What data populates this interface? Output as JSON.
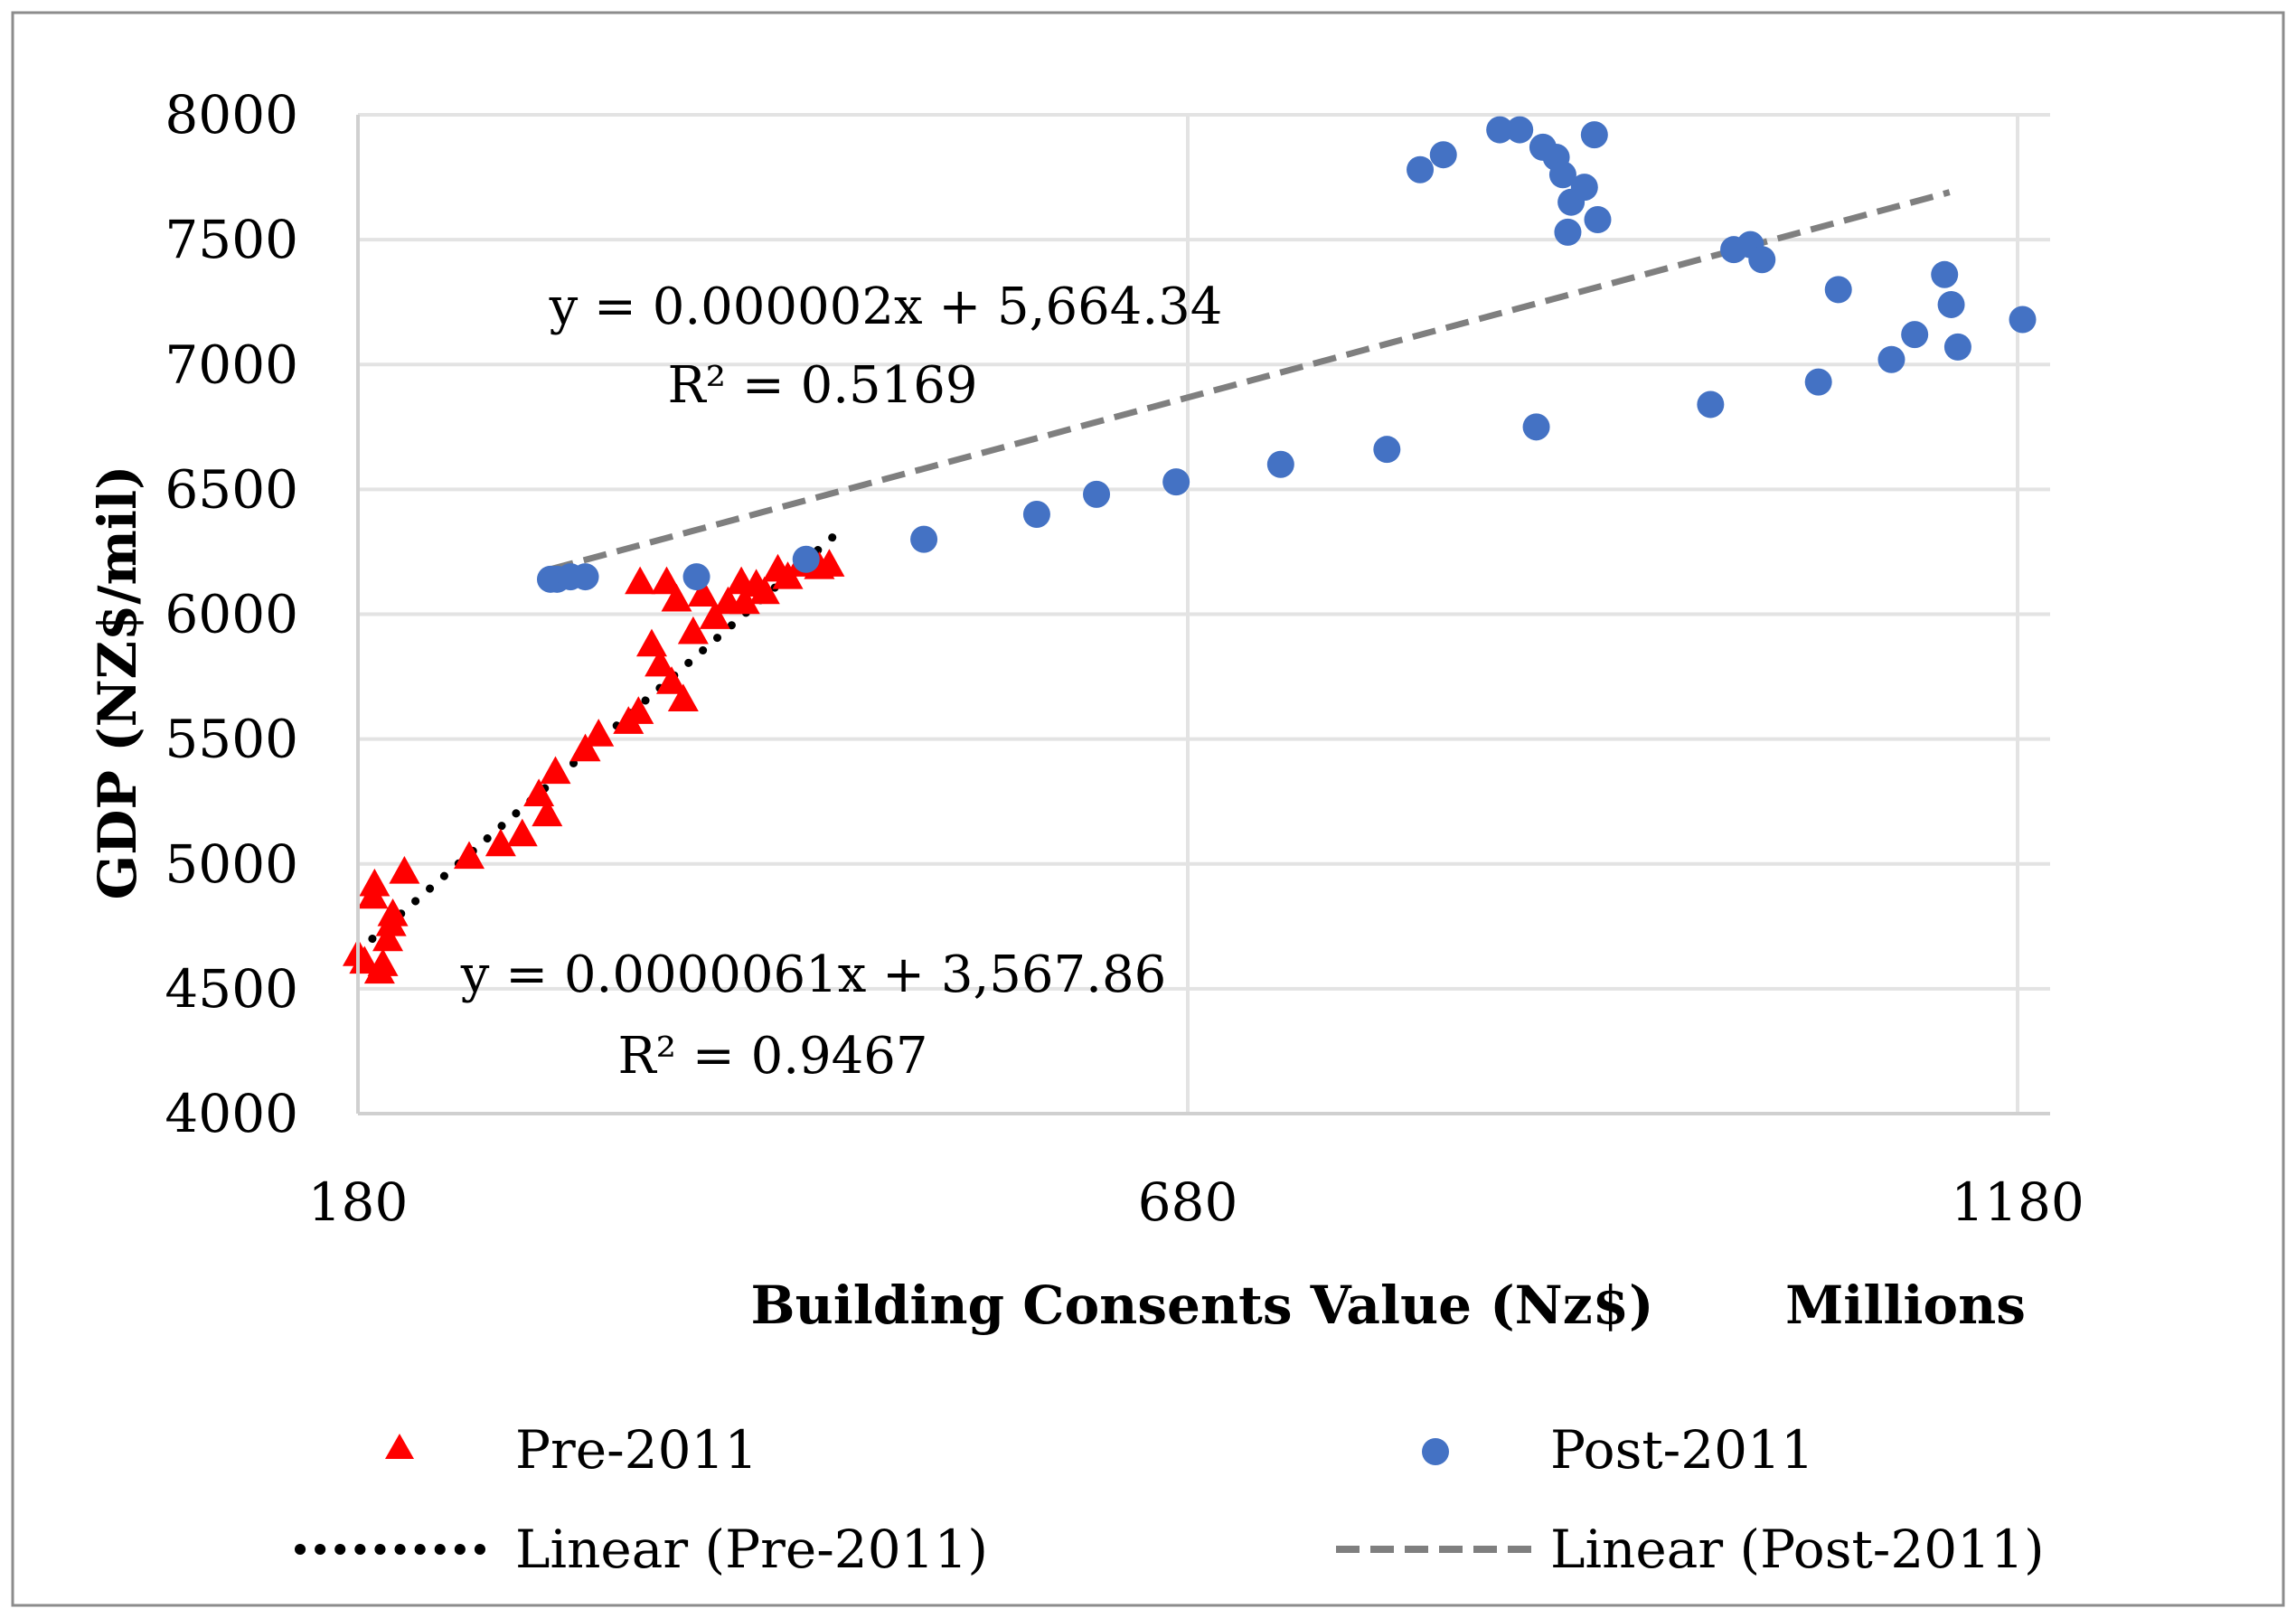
{
  "chart_data": {
    "type": "scatter",
    "title": "",
    "xlabel": "Building Consents Value (Nz$)",
    "x_unit_label": "Millions",
    "ylabel": "GDP (NZ$/mil)",
    "xlim": [
      180,
      1200
    ],
    "ylim": [
      4000,
      8000
    ],
    "xticks": [
      180,
      680,
      1180
    ],
    "yticks": [
      4000,
      4500,
      5000,
      5500,
      6000,
      6500,
      7000,
      7500,
      8000
    ],
    "grid": true,
    "legend_position": "bottom",
    "series": [
      {
        "name": "Pre-2011",
        "marker": "triangle",
        "color": "#ff0000",
        "points": [
          [
            180,
            4640
          ],
          [
            184,
            4610
          ],
          [
            189,
            4870
          ],
          [
            190,
            4920
          ],
          [
            193,
            4570
          ],
          [
            195,
            4600
          ],
          [
            198,
            4700
          ],
          [
            200,
            4760
          ],
          [
            201,
            4800
          ],
          [
            208,
            4970
          ],
          [
            247,
            5030
          ],
          [
            266,
            5080
          ],
          [
            279,
            5120
          ],
          [
            289,
            5280
          ],
          [
            294,
            5200
          ],
          [
            299,
            5370
          ],
          [
            317,
            5460
          ],
          [
            325,
            5520
          ],
          [
            343,
            5570
          ],
          [
            349,
            5610
          ],
          [
            350,
            6130
          ],
          [
            357,
            5880
          ],
          [
            362,
            5800
          ],
          [
            366,
            6130
          ],
          [
            369,
            5730
          ],
          [
            372,
            6060
          ],
          [
            376,
            5660
          ],
          [
            382,
            5930
          ],
          [
            388,
            6080
          ],
          [
            395,
            5990
          ],
          [
            403,
            6050
          ],
          [
            411,
            6130
          ],
          [
            413,
            6050
          ],
          [
            420,
            6120
          ],
          [
            425,
            6090
          ],
          [
            433,
            6180
          ],
          [
            439,
            6150
          ],
          [
            447,
            6200
          ],
          [
            458,
            6190
          ],
          [
            464,
            6200
          ]
        ]
      },
      {
        "name": "Post-2011",
        "marker": "circle",
        "color": "#4472c4",
        "points": [
          [
            296,
            6140
          ],
          [
            300,
            6140
          ],
          [
            308,
            6150
          ],
          [
            317,
            6150
          ],
          [
            384,
            6150
          ],
          [
            450,
            6220
          ],
          [
            521,
            6300
          ],
          [
            589,
            6400
          ],
          [
            625,
            6480
          ],
          [
            673,
            6530
          ],
          [
            736,
            6600
          ],
          [
            800,
            6660
          ],
          [
            820,
            7780
          ],
          [
            834,
            7840
          ],
          [
            868,
            7940
          ],
          [
            880,
            7940
          ],
          [
            890,
            6750
          ],
          [
            894,
            7870
          ],
          [
            902,
            7830
          ],
          [
            906,
            7760
          ],
          [
            909,
            7530
          ],
          [
            911,
            7650
          ],
          [
            919,
            7710
          ],
          [
            925,
            7920
          ],
          [
            927,
            7580
          ],
          [
            995,
            6840
          ],
          [
            1009,
            7460
          ],
          [
            1019,
            7480
          ],
          [
            1026,
            7420
          ],
          [
            1060,
            6930
          ],
          [
            1072,
            7300
          ],
          [
            1104,
            7020
          ],
          [
            1118,
            7120
          ],
          [
            1136,
            7360
          ],
          [
            1140,
            7240
          ],
          [
            1144,
            7070
          ],
          [
            1183,
            7180
          ]
        ]
      }
    ],
    "trendlines": [
      {
        "name": "Linear (Pre-2011)",
        "series": "Pre-2011",
        "style": "dotted",
        "color": "#000000",
        "x_range": [
          180,
          468
        ],
        "y_range": [
          4650,
          6320
        ],
        "equation": "y = 0.0000061x + 3,567.86",
        "r2": "R² = 0.9467"
      },
      {
        "name": "Linear (Post-2011)",
        "series": "Post-2011",
        "style": "dashed",
        "color": "#7f7f7f",
        "x_range": [
          296,
          1139
        ],
        "y_range": [
          6180,
          7690
        ],
        "equation": "y = 0.000002x + 5,664.34",
        "r2": "R² = 0.5169"
      }
    ]
  }
}
